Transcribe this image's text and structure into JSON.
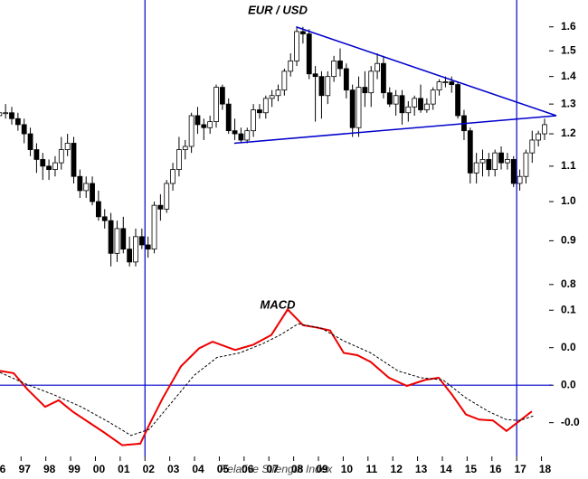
{
  "chart_data": [
    {
      "type": "candlestick",
      "title": "EUR / USD",
      "log_scale": true,
      "color_up": "#ffffff",
      "color_down": "#000000",
      "line_color": "#0000cc",
      "xlim": [
        1996.15,
        2018.6
      ],
      "xticks": [
        {
          "value": 1996,
          "label": "6"
        },
        {
          "value": 1997,
          "label": "97"
        },
        {
          "value": 1998,
          "label": "98"
        },
        {
          "value": 1999,
          "label": "99"
        },
        {
          "value": 2000,
          "label": "00"
        },
        {
          "value": 2001,
          "label": "01"
        },
        {
          "value": 2002,
          "label": "02"
        },
        {
          "value": 2003,
          "label": "03"
        },
        {
          "value": 2004,
          "label": "04"
        },
        {
          "value": 2005,
          "label": "05"
        },
        {
          "value": 2006,
          "label": "06"
        },
        {
          "value": 2007,
          "label": "07"
        },
        {
          "value": 2008,
          "label": "08"
        },
        {
          "value": 2009,
          "label": "09"
        },
        {
          "value": 2010,
          "label": "10"
        },
        {
          "value": 2011,
          "label": "11"
        },
        {
          "value": 2012,
          "label": "12"
        },
        {
          "value": 2013,
          "label": "13"
        },
        {
          "value": 2014,
          "label": "14"
        },
        {
          "value": 2015,
          "label": "15"
        },
        {
          "value": 2016,
          "label": "16"
        },
        {
          "value": 2017,
          "label": "17"
        },
        {
          "value": 2018,
          "label": "18"
        }
      ],
      "ylim": [
        0.79,
        1.72
      ],
      "yticks": [
        0.8,
        0.9,
        {
          "value": 1,
          "label": "1.0"
        },
        1.1,
        1.2,
        1.3,
        1.4,
        1.5,
        1.6
      ],
      "vlines": [
        2002,
        2017
      ],
      "trendlines": [
        {
          "x": [
            2008.1,
            2018.6
          ],
          "y": [
            1.6,
            1.26
          ]
        },
        {
          "x": [
            2005.6,
            2018.6
          ],
          "y": [
            1.17,
            1.26
          ]
        }
      ],
      "x": [
        1996.125,
        1996.375,
        1996.625,
        1996.875,
        1997.125,
        1997.375,
        1997.625,
        1997.875,
        1998.125,
        1998.375,
        1998.625,
        1998.875,
        1999.125,
        1999.375,
        1999.625,
        1999.875,
        2000.125,
        2000.375,
        2000.625,
        2000.875,
        2001.125,
        2001.375,
        2001.625,
        2001.875,
        2002.125,
        2002.375,
        2002.625,
        2002.875,
        2003.125,
        2003.375,
        2003.625,
        2003.875,
        2004.125,
        2004.375,
        2004.625,
        2004.875,
        2005.125,
        2005.375,
        2005.625,
        2005.875,
        2006.125,
        2006.375,
        2006.625,
        2006.875,
        2007.125,
        2007.375,
        2007.625,
        2007.875,
        2008.125,
        2008.375,
        2008.625,
        2008.875,
        2009.125,
        2009.375,
        2009.625,
        2009.875,
        2010.125,
        2010.375,
        2010.625,
        2010.875,
        2011.125,
        2011.375,
        2011.625,
        2011.875,
        2012.125,
        2012.375,
        2012.625,
        2012.875,
        2013.125,
        2013.375,
        2013.625,
        2013.875,
        2014.125,
        2014.375,
        2014.625,
        2014.875,
        2015.125,
        2015.375,
        2015.625,
        2015.875,
        2016.125,
        2016.375,
        2016.625,
        2016.875,
        2017.125,
        2017.375,
        2017.625,
        2017.875,
        2018.125
      ],
      "open": [
        1.26,
        1.27,
        1.27,
        1.25,
        1.23,
        1.2,
        1.15,
        1.12,
        1.1,
        1.09,
        1.11,
        1.15,
        1.17,
        1.07,
        1.03,
        1.05,
        1.0,
        0.96,
        0.95,
        0.87,
        0.93,
        0.88,
        0.85,
        0.91,
        0.89,
        0.88,
        0.99,
        0.98,
        1.05,
        1.09,
        1.15,
        1.16,
        1.26,
        1.23,
        1.22,
        1.24,
        1.36,
        1.3,
        1.21,
        1.2,
        1.18,
        1.21,
        1.28,
        1.27,
        1.32,
        1.33,
        1.35,
        1.42,
        1.46,
        1.58,
        1.57,
        1.41,
        1.4,
        1.33,
        1.4,
        1.46,
        1.43,
        1.35,
        1.22,
        1.36,
        1.34,
        1.42,
        1.45,
        1.34,
        1.3,
        1.33,
        1.27,
        1.29,
        1.32,
        1.28,
        1.3,
        1.35,
        1.38,
        1.38,
        1.37,
        1.26,
        1.21,
        1.08,
        1.11,
        1.12,
        1.09,
        1.14,
        1.11,
        1.12,
        1.05,
        1.07,
        1.14,
        1.18,
        1.2
      ],
      "high": [
        1.29,
        1.3,
        1.29,
        1.27,
        1.25,
        1.22,
        1.17,
        1.14,
        1.12,
        1.13,
        1.19,
        1.2,
        1.19,
        1.09,
        1.07,
        1.07,
        1.03,
        0.98,
        0.97,
        0.95,
        0.96,
        0.91,
        0.93,
        0.93,
        0.91,
        1.0,
        1.02,
        1.06,
        1.11,
        1.19,
        1.18,
        1.27,
        1.29,
        1.25,
        1.26,
        1.37,
        1.37,
        1.32,
        1.25,
        1.22,
        1.22,
        1.3,
        1.3,
        1.33,
        1.35,
        1.37,
        1.43,
        1.49,
        1.6,
        1.6,
        1.59,
        1.44,
        1.42,
        1.42,
        1.48,
        1.51,
        1.45,
        1.37,
        1.4,
        1.42,
        1.44,
        1.49,
        1.48,
        1.36,
        1.35,
        1.35,
        1.31,
        1.33,
        1.37,
        1.32,
        1.36,
        1.39,
        1.4,
        1.4,
        1.38,
        1.28,
        1.22,
        1.14,
        1.15,
        1.14,
        1.15,
        1.16,
        1.14,
        1.13,
        1.09,
        1.15,
        1.21,
        1.21,
        1.25
      ],
      "low": [
        1.24,
        1.25,
        1.23,
        1.21,
        1.17,
        1.13,
        1.08,
        1.06,
        1.06,
        1.07,
        1.09,
        1.13,
        1.05,
        1.01,
        1.01,
        0.99,
        0.95,
        0.93,
        0.84,
        0.85,
        0.87,
        0.84,
        0.84,
        0.88,
        0.86,
        0.87,
        0.95,
        0.97,
        1.03,
        1.07,
        1.12,
        1.14,
        1.2,
        1.18,
        1.2,
        1.22,
        1.28,
        1.2,
        1.18,
        1.17,
        1.17,
        1.19,
        1.25,
        1.25,
        1.29,
        1.31,
        1.33,
        1.4,
        1.44,
        1.53,
        1.39,
        1.24,
        1.25,
        1.3,
        1.38,
        1.4,
        1.32,
        1.19,
        1.19,
        1.29,
        1.29,
        1.39,
        1.32,
        1.29,
        1.26,
        1.23,
        1.24,
        1.26,
        1.27,
        1.27,
        1.28,
        1.33,
        1.36,
        1.34,
        1.25,
        1.18,
        1.05,
        1.05,
        1.07,
        1.07,
        1.07,
        1.09,
        1.09,
        1.04,
        1.03,
        1.05,
        1.11,
        1.16,
        1.18
      ],
      "close": [
        1.27,
        1.27,
        1.25,
        1.23,
        1.2,
        1.15,
        1.12,
        1.1,
        1.09,
        1.11,
        1.15,
        1.17,
        1.07,
        1.03,
        1.05,
        1.0,
        0.96,
        0.95,
        0.87,
        0.93,
        0.88,
        0.85,
        0.91,
        0.89,
        0.88,
        0.99,
        0.98,
        1.05,
        1.09,
        1.15,
        1.16,
        1.26,
        1.23,
        1.22,
        1.24,
        1.36,
        1.3,
        1.21,
        1.2,
        1.18,
        1.21,
        1.28,
        1.27,
        1.32,
        1.33,
        1.35,
        1.42,
        1.46,
        1.58,
        1.57,
        1.41,
        1.4,
        1.33,
        1.4,
        1.46,
        1.43,
        1.35,
        1.22,
        1.36,
        1.34,
        1.42,
        1.45,
        1.34,
        1.3,
        1.33,
        1.27,
        1.29,
        1.32,
        1.28,
        1.3,
        1.35,
        1.38,
        1.38,
        1.37,
        1.26,
        1.21,
        1.08,
        1.11,
        1.12,
        1.09,
        1.14,
        1.11,
        1.12,
        1.05,
        1.07,
        1.14,
        1.18,
        1.2,
        1.23
      ]
    },
    {
      "type": "line",
      "title": "MACD",
      "subtitle": "Relative Strength Index",
      "line_color": "#0000cc",
      "xlim": [
        1996.15,
        2018.6
      ],
      "ylim": [
        -0.095,
        0.128
      ],
      "yticks": [
        -0.05,
        0,
        0.05,
        0.1
      ],
      "ytick_labels": [
        "-0.0",
        "0.0",
        "0.0",
        "0.1"
      ],
      "hline": 0,
      "series": [
        {
          "color": "#ee0000",
          "dash": false,
          "x": [
            1996.15,
            1996.7,
            1997.24,
            1997.97,
            1998.52,
            1999.07,
            1999.8,
            2000.35,
            2001.08,
            2001.81,
            2002.17,
            2002.72,
            2003.45,
            2004.18,
            2004.73,
            2005.64,
            2006.37,
            2007.1,
            2007.76,
            2008.38,
            2008.92,
            2009.47,
            2010.02,
            2010.57,
            2011.11,
            2011.84,
            2012.57,
            2013.3,
            2013.85,
            2014.4,
            2014.95,
            2015.49,
            2016.04,
            2016.59,
            2017.14,
            2017.61
          ],
          "values": [
            0.019,
            0.016,
            -0.005,
            -0.029,
            -0.02,
            -0.035,
            -0.051,
            -0.063,
            -0.08,
            -0.078,
            -0.053,
            -0.017,
            0.025,
            0.049,
            0.058,
            0.047,
            0.054,
            0.067,
            0.101,
            0.08,
            0.077,
            0.073,
            0.043,
            0.04,
            0.031,
            0.01,
            -0.001,
            0.007,
            0.01,
            -0.013,
            -0.039,
            -0.046,
            -0.047,
            -0.061,
            -0.047,
            -0.035
          ]
        },
        {
          "color": "#000000",
          "dash": true,
          "x": [
            1996.15,
            1997.24,
            1998.34,
            1999.43,
            2000.53,
            2001.44,
            2002.17,
            2003.08,
            2003.98,
            2004.91,
            2005.82,
            2006.73,
            2007.46,
            2008.19,
            2009.11,
            2010.02,
            2011.11,
            2012.21,
            2013.12,
            2014.03,
            2014.95,
            2015.86,
            2016.59,
            2017.14,
            2017.68
          ],
          "values": [
            0.017,
            0.001,
            -0.013,
            -0.029,
            -0.049,
            -0.067,
            -0.059,
            -0.023,
            0.013,
            0.037,
            0.043,
            0.055,
            0.067,
            0.082,
            0.076,
            0.059,
            0.043,
            0.019,
            0.01,
            0.007,
            -0.017,
            -0.035,
            -0.046,
            -0.047,
            -0.041
          ]
        }
      ]
    }
  ]
}
